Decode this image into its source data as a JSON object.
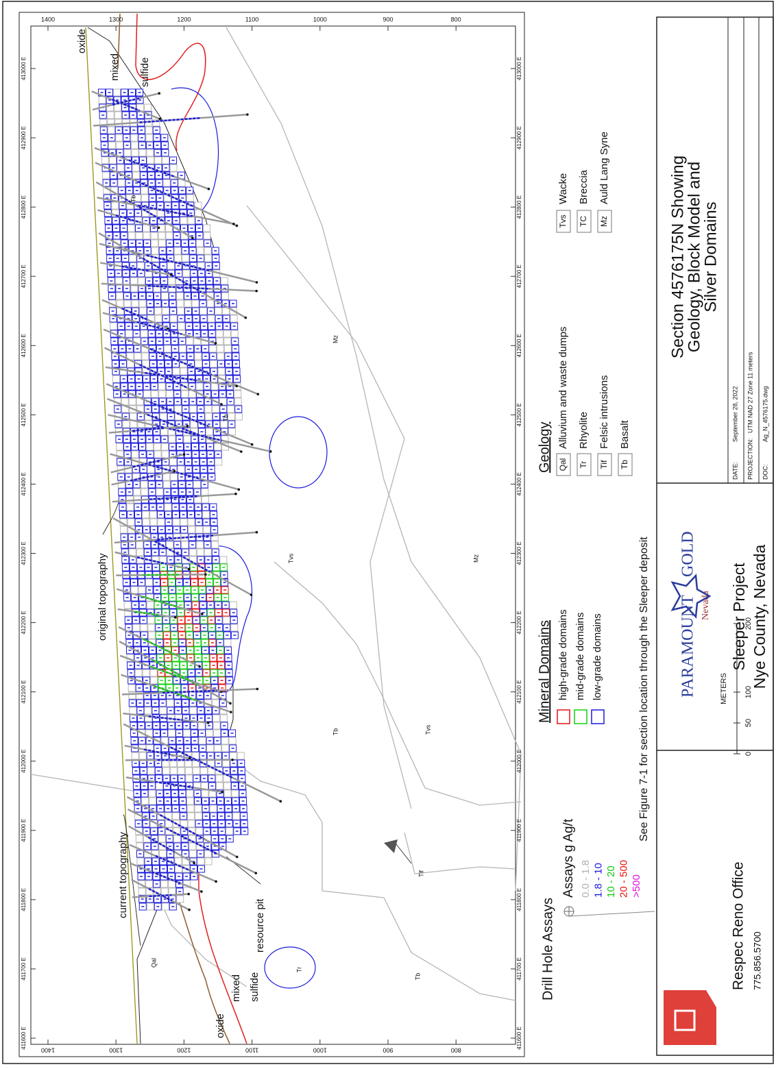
{
  "section": {
    "easting_labels": [
      "411600 E",
      "411700 E",
      "411800 E",
      "411900 E",
      "412000 E",
      "412100 E",
      "412200 E",
      "412300 E",
      "412400 E",
      "412500 E",
      "412600 E",
      "412700 E",
      "412800 E",
      "412900 E",
      "413000 E"
    ],
    "elevation_labels": [
      "1400",
      "1300",
      "1200",
      "1100",
      "1000",
      "900",
      "800"
    ],
    "annotations": [
      "oxide",
      "mixed",
      "sulfide",
      "oxide",
      "mixed",
      "sulfide",
      "original topography",
      "current topography",
      "resource pit"
    ],
    "rock_labels": [
      "Tb",
      "Tvs",
      "Mz",
      "Tb",
      "Mz",
      "Tb",
      "Tvs",
      "Tif",
      "Tr",
      "Qal",
      "Tb"
    ]
  },
  "legend": {
    "drill_title": "Drill Hole Assays",
    "assay_title": "Assays g Ag/t",
    "assay_classes": [
      {
        "label": "0.0 - 1.8",
        "color": "#b0b0b0"
      },
      {
        "label": "1.8 - 10",
        "color": "#1a1adc"
      },
      {
        "label": "10 - 20",
        "color": "#10c810"
      },
      {
        "label": "20 - 500",
        "color": "#e81010"
      },
      {
        "label": ">500",
        "color": "#e010e0"
      }
    ],
    "domains_title": "Mineral Domains",
    "domains": [
      {
        "name": "high-grade domains",
        "color": "#e81010"
      },
      {
        "name": "mid-grade domains",
        "color": "#10d010"
      },
      {
        "name": "low-grade domains",
        "color": "#1a1adc"
      }
    ],
    "geology_title": "Geology",
    "geology": [
      {
        "code": "Qal",
        "name": "Alluvium and waste dumps"
      },
      {
        "code": "Tr",
        "name": "Rhyolite"
      },
      {
        "code": "Tif",
        "name": "Felsic intrusions"
      },
      {
        "code": "Tb",
        "name": "Basalt"
      },
      {
        "code": "Tvs",
        "name": "Wacke"
      },
      {
        "code": "TC",
        "name": "Breccia"
      },
      {
        "code": "Mz",
        "name": "Auld Lang Syne"
      }
    ]
  },
  "note": "See Figure 7-1 for section location through the Sleeper deposit",
  "title_block": {
    "office": "Respec Reno Office",
    "phone": "775.856.5700",
    "respec_logo": "RESPEC",
    "company_left": "PARAMOUNT",
    "company_right": "GOLD",
    "company_sub": "Nevada",
    "project": "Sleeper Project",
    "location": "Nye County, Nevada",
    "scale_title": "METERS",
    "scale_labels": [
      "0",
      "50",
      "100",
      "200"
    ],
    "title_lines": [
      "Section 4576175N Showing",
      "Geology, Block Model and",
      "Silver Domains"
    ],
    "info": [
      {
        "label": "DATE:",
        "value": "September 28, 2022"
      },
      {
        "label": "PROJECTION:",
        "value": "UTM NAD 27 Zone 11 meters"
      },
      {
        "label": "DOC:",
        "value": "Ag_N_4576175.dwg"
      }
    ]
  }
}
